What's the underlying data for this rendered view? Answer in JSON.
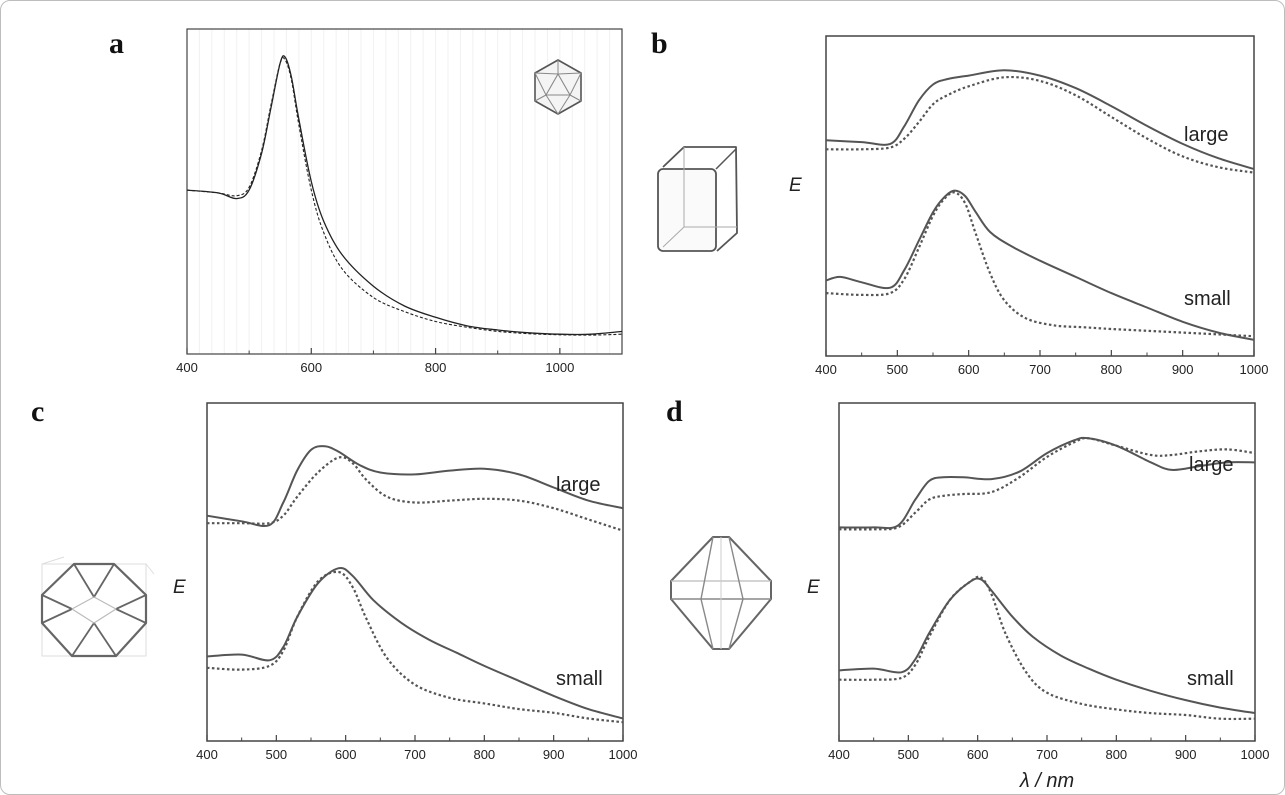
{
  "chart_data": [
    {
      "panel": "a",
      "type": "line",
      "xlim": [
        400,
        1100
      ],
      "xticks": [
        400,
        600,
        800,
        1000
      ],
      "ylabel": "",
      "labels": [],
      "series": [
        {
          "style": "solid",
          "x": [
            400,
            450,
            480,
            500,
            520,
            535,
            550,
            558,
            568,
            580,
            600,
            620,
            650,
            700,
            750,
            800,
            850,
            900,
            950,
            1000,
            1050,
            1100
          ],
          "y": [
            0.53,
            0.52,
            0.5,
            0.53,
            0.66,
            0.82,
            0.98,
            1.0,
            0.93,
            0.78,
            0.56,
            0.42,
            0.3,
            0.19,
            0.12,
            0.08,
            0.05,
            0.035,
            0.025,
            0.02,
            0.02,
            0.03
          ]
        },
        {
          "style": "dashed",
          "x": [
            400,
            450,
            480,
            500,
            520,
            535,
            550,
            558,
            568,
            580,
            600,
            620,
            650,
            700,
            750,
            800,
            850,
            900,
            950,
            1000,
            1050,
            1100
          ],
          "y": [
            0.53,
            0.52,
            0.51,
            0.54,
            0.67,
            0.83,
            0.98,
            0.99,
            0.92,
            0.76,
            0.53,
            0.38,
            0.25,
            0.15,
            0.1,
            0.065,
            0.045,
            0.03,
            0.022,
            0.018,
            0.017,
            0.02
          ]
        }
      ]
    },
    {
      "panel": "b",
      "type": "line",
      "xlim": [
        400,
        1000
      ],
      "xticks": [
        400,
        500,
        600,
        700,
        800,
        900,
        1000
      ],
      "ylabel": "E",
      "labels": [
        "large",
        "small"
      ],
      "series": [
        {
          "group": "large",
          "style": "solid",
          "x": [
            400,
            450,
            490,
            510,
            530,
            550,
            570,
            600,
            650,
            700,
            750,
            800,
            850,
            900,
            950,
            1000
          ],
          "y": [
            1.12,
            1.11,
            1.1,
            1.2,
            1.34,
            1.43,
            1.46,
            1.48,
            1.51,
            1.48,
            1.41,
            1.31,
            1.2,
            1.1,
            1.02,
            0.96
          ]
        },
        {
          "group": "large",
          "style": "dashed",
          "x": [
            400,
            450,
            490,
            510,
            530,
            550,
            570,
            600,
            650,
            700,
            750,
            800,
            850,
            900,
            950,
            1000
          ],
          "y": [
            1.07,
            1.07,
            1.08,
            1.13,
            1.22,
            1.32,
            1.37,
            1.42,
            1.47,
            1.45,
            1.37,
            1.25,
            1.13,
            1.03,
            0.97,
            0.94
          ]
        },
        {
          "group": "small",
          "style": "solid",
          "x": [
            400,
            420,
            450,
            490,
            510,
            530,
            550,
            565,
            580,
            595,
            610,
            630,
            660,
            700,
            750,
            800,
            850,
            900,
            950,
            1000
          ],
          "y": [
            0.34,
            0.36,
            0.33,
            0.3,
            0.4,
            0.56,
            0.72,
            0.8,
            0.84,
            0.81,
            0.72,
            0.61,
            0.53,
            0.45,
            0.36,
            0.27,
            0.19,
            0.11,
            0.05,
            0.01
          ]
        },
        {
          "group": "small",
          "style": "dashed",
          "x": [
            400,
            450,
            490,
            510,
            530,
            550,
            565,
            580,
            595,
            610,
            630,
            650,
            680,
            720,
            760,
            800,
            850,
            900,
            950,
            1000
          ],
          "y": [
            0.27,
            0.26,
            0.27,
            0.35,
            0.52,
            0.7,
            0.79,
            0.83,
            0.77,
            0.6,
            0.38,
            0.23,
            0.13,
            0.09,
            0.08,
            0.07,
            0.06,
            0.05,
            0.04,
            0.03
          ]
        }
      ]
    },
    {
      "panel": "c",
      "type": "line",
      "xlim": [
        400,
        1000
      ],
      "xticks": [
        400,
        500,
        600,
        700,
        800,
        900,
        1000
      ],
      "ylabel": "E",
      "labels": [
        "large",
        "small"
      ],
      "series": [
        {
          "group": "large",
          "style": "solid",
          "x": [
            400,
            450,
            490,
            510,
            530,
            550,
            570,
            590,
            620,
            650,
            700,
            750,
            800,
            850,
            900,
            950,
            1000
          ],
          "y": [
            1.1,
            1.07,
            1.05,
            1.17,
            1.34,
            1.45,
            1.47,
            1.44,
            1.37,
            1.33,
            1.32,
            1.34,
            1.35,
            1.32,
            1.25,
            1.18,
            1.14
          ]
        },
        {
          "group": "large",
          "style": "dashed",
          "x": [
            400,
            450,
            490,
            510,
            530,
            560,
            590,
            610,
            630,
            660,
            700,
            750,
            800,
            850,
            900,
            950,
            1000
          ],
          "y": [
            1.06,
            1.06,
            1.06,
            1.1,
            1.2,
            1.33,
            1.41,
            1.38,
            1.29,
            1.2,
            1.17,
            1.18,
            1.19,
            1.18,
            1.14,
            1.08,
            1.02
          ]
        },
        {
          "group": "small",
          "style": "solid",
          "x": [
            400,
            450,
            490,
            510,
            530,
            560,
            590,
            610,
            640,
            680,
            720,
            760,
            800,
            850,
            900,
            950,
            1000
          ],
          "y": [
            0.35,
            0.36,
            0.33,
            0.4,
            0.56,
            0.74,
            0.82,
            0.78,
            0.65,
            0.53,
            0.44,
            0.37,
            0.3,
            0.22,
            0.14,
            0.07,
            0.02
          ]
        },
        {
          "group": "small",
          "style": "dashed",
          "x": [
            400,
            450,
            490,
            510,
            530,
            560,
            590,
            610,
            630,
            660,
            700,
            750,
            800,
            850,
            900,
            950,
            1000
          ],
          "y": [
            0.29,
            0.28,
            0.3,
            0.38,
            0.56,
            0.75,
            0.8,
            0.72,
            0.55,
            0.34,
            0.2,
            0.13,
            0.1,
            0.07,
            0.05,
            0.02,
            0.0
          ]
        }
      ]
    },
    {
      "panel": "d",
      "type": "line",
      "xlim": [
        400,
        1000
      ],
      "xticks": [
        400,
        500,
        600,
        700,
        800,
        900,
        1000
      ],
      "xlabel": "λ / nm",
      "ylabel": "E",
      "labels": [
        "large",
        "small"
      ],
      "series": [
        {
          "group": "large",
          "style": "solid",
          "x": [
            400,
            450,
            485,
            510,
            530,
            550,
            580,
            620,
            660,
            700,
            740,
            760,
            800,
            850,
            880,
            920,
            960,
            1000
          ],
          "y": [
            1.05,
            1.05,
            1.06,
            1.2,
            1.3,
            1.32,
            1.32,
            1.31,
            1.35,
            1.45,
            1.52,
            1.53,
            1.49,
            1.4,
            1.36,
            1.38,
            1.4,
            1.4
          ]
        },
        {
          "group": "large",
          "style": "dashed",
          "x": [
            400,
            450,
            485,
            510,
            530,
            550,
            580,
            620,
            660,
            700,
            740,
            760,
            800,
            850,
            880,
            920,
            960,
            1000
          ],
          "y": [
            1.04,
            1.04,
            1.05,
            1.13,
            1.2,
            1.22,
            1.23,
            1.24,
            1.32,
            1.43,
            1.51,
            1.53,
            1.49,
            1.44,
            1.44,
            1.46,
            1.47,
            1.45
          ]
        },
        {
          "group": "small",
          "style": "solid",
          "x": [
            400,
            450,
            490,
            510,
            530,
            560,
            590,
            605,
            620,
            650,
            680,
            720,
            760,
            800,
            850,
            900,
            950,
            1000
          ],
          "y": [
            0.28,
            0.29,
            0.27,
            0.34,
            0.48,
            0.66,
            0.76,
            0.77,
            0.71,
            0.57,
            0.46,
            0.36,
            0.29,
            0.23,
            0.17,
            0.12,
            0.08,
            0.05
          ]
        },
        {
          "group": "small",
          "style": "dashed",
          "x": [
            400,
            450,
            490,
            510,
            530,
            560,
            590,
            605,
            620,
            640,
            670,
            700,
            750,
            800,
            850,
            900,
            950,
            1000
          ],
          "y": [
            0.23,
            0.23,
            0.24,
            0.31,
            0.46,
            0.66,
            0.76,
            0.78,
            0.69,
            0.48,
            0.27,
            0.16,
            0.1,
            0.07,
            0.05,
            0.04,
            0.02,
            0.02
          ]
        }
      ]
    }
  ]
}
